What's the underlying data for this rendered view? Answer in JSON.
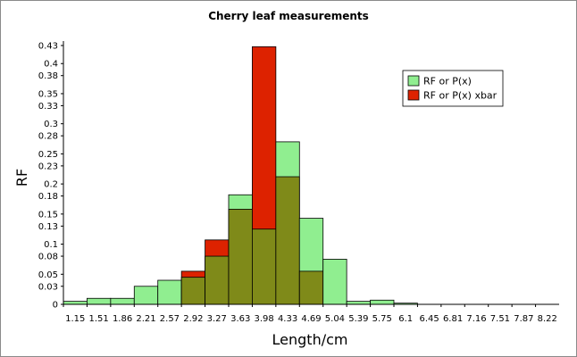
{
  "chart_data": {
    "type": "bar",
    "title": "Cherry leaf measurements",
    "xlabel": "Length/cm",
    "ylabel": "RF",
    "categories": [
      "1.15",
      "1.51",
      "1.86",
      "2.21",
      "2.57",
      "2.92",
      "3.27",
      "3.63",
      "3.98",
      "4.33",
      "4.69",
      "5.04",
      "5.39",
      "5.75",
      "6.1",
      "6.45",
      "6.81",
      "7.16",
      "7.51",
      "7.87",
      "8.22"
    ],
    "y_ticks": [
      "0",
      "0.03",
      "0.05",
      "0.08",
      "0.1",
      "0.13",
      "0.15",
      "0.18",
      "0.2",
      "0.23",
      "0.25",
      "0.28",
      "0.3",
      "0.33",
      "0.35",
      "0.38",
      "0.4",
      "0.43"
    ],
    "ylim": [
      0,
      0.43
    ],
    "overlap_color": "#7f8a19",
    "series": [
      {
        "name": "RF or P(x)",
        "color": "#90ee90",
        "values": [
          0.005,
          0.01,
          0.01,
          0.03,
          0.04,
          0.045,
          0.08,
          0.182,
          0.125,
          0.27,
          0.143,
          0.075,
          0.005,
          0.007,
          0.002,
          0,
          0,
          0,
          0,
          0,
          0
        ]
      },
      {
        "name": "RF  or P(x) xbar",
        "color": "#dd2200",
        "values": [
          0,
          0,
          0,
          0,
          0,
          0.055,
          0.107,
          0.158,
          0.428,
          0.212,
          0.055,
          0,
          0,
          0,
          0,
          0,
          0,
          0,
          0,
          0,
          0
        ]
      }
    ],
    "legend_position": "top-right",
    "grid": false
  }
}
